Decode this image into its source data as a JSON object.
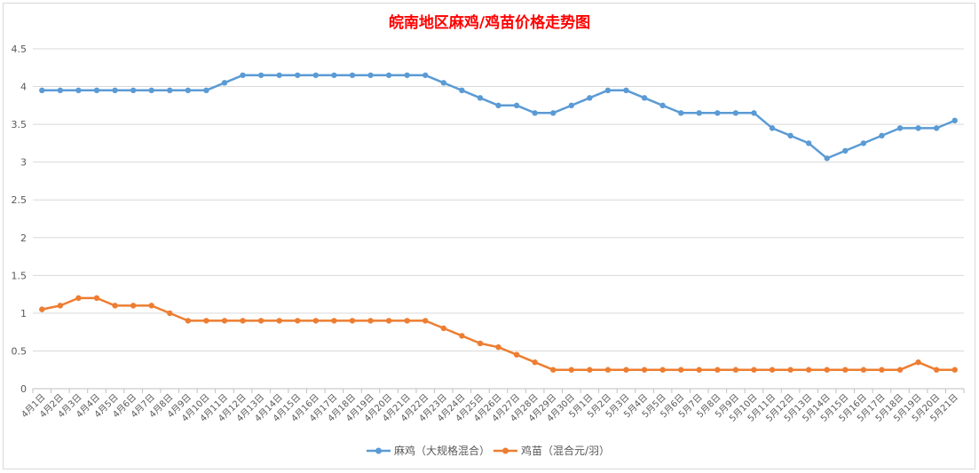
{
  "chart_data": {
    "type": "line",
    "title": "皖南地区麻鸡/鸡苗价格走势图",
    "xlabel": "",
    "ylabel": "",
    "ylim": [
      0,
      4.5
    ],
    "yticks": [
      "0",
      "0.5",
      "1",
      "1.5",
      "2",
      "2.5",
      "3",
      "3.5",
      "4",
      "4.5"
    ],
    "grid": true,
    "legend_position": "bottom",
    "categories": [
      "4月1日",
      "4月2日",
      "4月3日",
      "4月4日",
      "4月5日",
      "4月6日",
      "4月7日",
      "4月8日",
      "4月9日",
      "4月10日",
      "4月11日",
      "4月12日",
      "4月13日",
      "4月14日",
      "4月15日",
      "4月16日",
      "4月17日",
      "4月18日",
      "4月19日",
      "4月20日",
      "4月21日",
      "4月22日",
      "4月23日",
      "4月24日",
      "4月25日",
      "4月26日",
      "4月27日",
      "4月28日",
      "4月29日",
      "4月30日",
      "5月1日",
      "5月2日",
      "5月3日",
      "5月4日",
      "5月5日",
      "5月6日",
      "5月7日",
      "5月8日",
      "5月9日",
      "5月10日",
      "5月11日",
      "5月12日",
      "5月13日",
      "5月14日",
      "5月15日",
      "5月16日",
      "5月17日",
      "5月18日",
      "5月19日",
      "5月20日",
      "5月21日"
    ],
    "series": [
      {
        "name": "麻鸡（大规格混合）",
        "color": "#5b9bd5",
        "values": [
          3.95,
          3.95,
          3.95,
          3.95,
          3.95,
          3.95,
          3.95,
          3.95,
          3.95,
          3.95,
          4.05,
          4.15,
          4.15,
          4.15,
          4.15,
          4.15,
          4.15,
          4.15,
          4.15,
          4.15,
          4.15,
          4.15,
          4.05,
          3.95,
          3.85,
          3.75,
          3.75,
          3.65,
          3.65,
          3.75,
          3.85,
          3.95,
          3.95,
          3.85,
          3.75,
          3.65,
          3.65,
          3.65,
          3.65,
          3.65,
          3.45,
          3.35,
          3.25,
          3.05,
          3.15,
          3.25,
          3.35,
          3.45,
          3.45,
          3.45,
          3.55
        ]
      },
      {
        "name": "鸡苗（混合元/羽）",
        "color": "#ed7d31",
        "values": [
          1.05,
          1.1,
          1.2,
          1.2,
          1.1,
          1.1,
          1.1,
          1.0,
          0.9,
          0.9,
          0.9,
          0.9,
          0.9,
          0.9,
          0.9,
          0.9,
          0.9,
          0.9,
          0.9,
          0.9,
          0.9,
          0.9,
          0.8,
          0.7,
          0.6,
          0.55,
          0.45,
          0.35,
          0.25,
          0.25,
          0.25,
          0.25,
          0.25,
          0.25,
          0.25,
          0.25,
          0.25,
          0.25,
          0.25,
          0.25,
          0.25,
          0.25,
          0.25,
          0.25,
          0.25,
          0.25,
          0.25,
          0.25,
          0.35,
          0.25,
          0.25
        ]
      }
    ]
  }
}
